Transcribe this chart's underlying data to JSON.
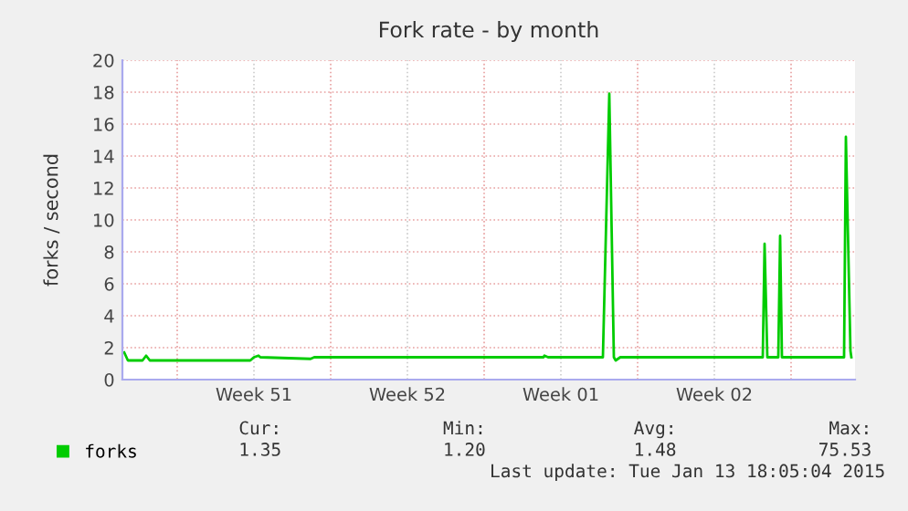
{
  "chart_data": {
    "type": "line",
    "title": "Fork rate - by month",
    "ylabel": "forks / second",
    "xlim": [
      "2014-12-12T12:00",
      "2015-01-14T22:00"
    ],
    "xticks": [
      {
        "value": "2014-12-15",
        "label": null
      },
      {
        "value": "2014-12-18T12:00",
        "label": "Week 51"
      },
      {
        "value": "2014-12-22",
        "label": null
      },
      {
        "value": "2014-12-25T12:00",
        "label": "Week 52"
      },
      {
        "value": "2014-12-29",
        "label": null
      },
      {
        "value": "2015-01-01T12:00",
        "label": "Week 01"
      },
      {
        "value": "2015-01-05",
        "label": null
      },
      {
        "value": "2015-01-08T12:00",
        "label": "Week 02"
      },
      {
        "value": "2015-01-12",
        "label": null
      }
    ],
    "ylim": [
      0,
      20
    ],
    "yticks": [
      0,
      2,
      4,
      6,
      8,
      10,
      12,
      14,
      16,
      18,
      20
    ],
    "grid": true,
    "legend": "bottom left",
    "marker": "none",
    "line_style": "solid",
    "series": [
      {
        "name": "forks",
        "color": "#00cc00",
        "x": [
          "2014-12-12T14:00",
          "2014-12-12T18:00",
          "2014-12-13T10:00",
          "2014-12-13T14:00",
          "2014-12-13T18:00",
          "2014-12-18T08:00",
          "2014-12-18T12:00",
          "2014-12-18T17:00",
          "2014-12-18T19:00",
          "2014-12-21T02:00",
          "2014-12-21T06:00",
          "2014-12-21T10:00",
          "2014-12-31T17:00",
          "2014-12-31T18:00",
          "2014-12-31T22:00",
          "2015-01-03T10:00",
          "2015-01-03T17:00",
          "2015-01-03T22:00",
          "2015-01-04T00:00",
          "2015-01-04T05:00",
          "2015-01-10T17:00",
          "2015-01-10T19:00",
          "2015-01-10T22:00",
          "2015-01-11T10:00",
          "2015-01-11T12:00",
          "2015-01-11T14:00",
          "2015-01-14T10:00",
          "2015-01-14T12:00",
          "2015-01-14T17:00",
          "2015-01-14T18:00"
        ],
        "values": [
          1.7,
          1.2,
          1.2,
          1.5,
          1.2,
          1.2,
          1.4,
          1.5,
          1.4,
          1.3,
          1.4,
          1.4,
          1.4,
          1.5,
          1.4,
          1.4,
          17.9,
          1.4,
          1.2,
          1.4,
          1.4,
          8.5,
          1.4,
          1.4,
          9.0,
          1.4,
          1.4,
          15.2,
          1.8,
          1.4
        ]
      }
    ],
    "annotations": [
      "Cur:",
      "Min:",
      "Avg:",
      "Max:",
      "1.35",
      "1.20",
      "1.48",
      "75.53",
      "Last update: Tue Jan 13 18:05:04 2015"
    ]
  }
}
